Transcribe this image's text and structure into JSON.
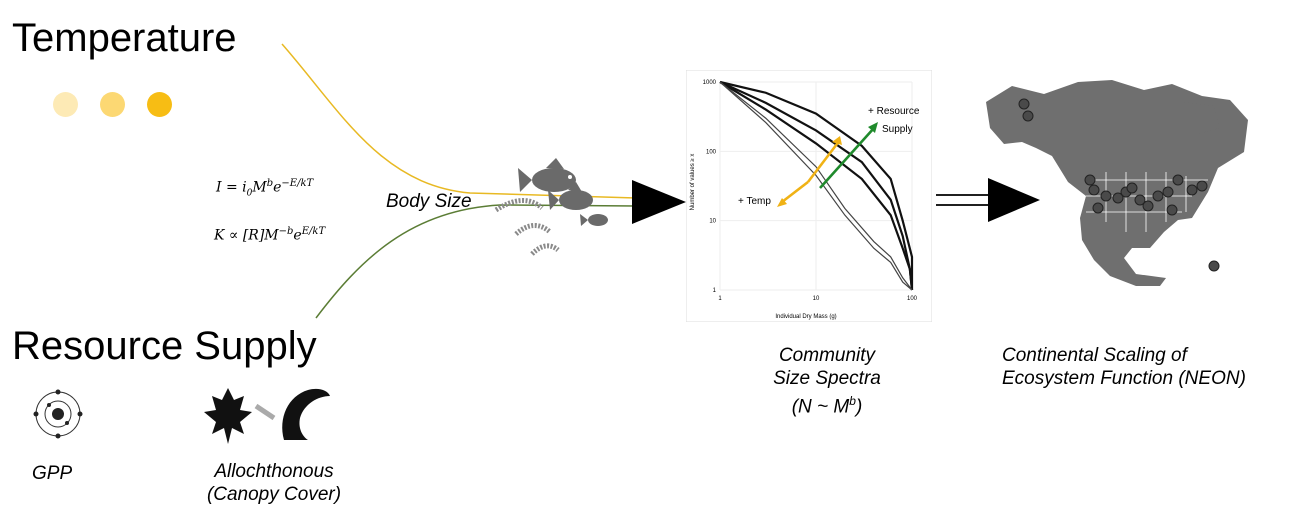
{
  "headings": {
    "temperature": "Temperature",
    "resource_supply": "Resource Supply"
  },
  "equations": {
    "metabolic": "I = i",
    "metabolic_sub": "0",
    "metabolic_rest": "M",
    "metabolic_exp_b": "b",
    "metabolic_e": "e",
    "metabolic_exp": "−E/kT",
    "carrying": "K ∝ [R]M",
    "carrying_exp": "−b",
    "carrying_e": "e",
    "carrying_exp2": "E/kT"
  },
  "labels": {
    "body_size": "Body Size",
    "gpp": "GPP",
    "allochthonous_line1": "Allochthonous",
    "allochthonous_line2": "(Canopy Cover)",
    "spectra_line1": "Community",
    "spectra_line2": "Size Spectra",
    "spectra_line3": "(N ~ M",
    "spectra_sup": "b",
    "spectra_line3_end": ")",
    "continental_line1": "Continental Scaling of",
    "continental_line2": "Ecosystem Function (NEON)"
  },
  "colors": {
    "temperature_dots": [
      "#fdeab5",
      "#fcd873",
      "#f7bd14"
    ],
    "temp_line": "#e8b923",
    "resource_line": "#5b7d35",
    "temp_arrow": "#f0b215",
    "resource_arrow": "#1f8a2c",
    "map_land": "#6f6f6f",
    "map_points": "#4a4a4a"
  },
  "icons": [
    "sun-dots",
    "fish-icon",
    "invertebrate-icon",
    "atom-icon",
    "leaf-icon",
    "caterpillar-icon",
    "arrow-head-icon",
    "north-america-map"
  ],
  "chart_data": {
    "type": "line",
    "xlabel": "Individual Dry Mass (g)",
    "ylabel": "Number of values ≥ x",
    "x_scale": "log",
    "y_scale": "log",
    "xlim": [
      1,
      100
    ],
    "ylim": [
      1,
      1000
    ],
    "x_ticks": [
      "1",
      "10",
      "100"
    ],
    "y_ticks": [
      "1000",
      "100",
      "10",
      "1"
    ],
    "annotations": [
      "+ Resource",
      "Supply",
      "+ Temp"
    ],
    "grid": true,
    "series": [
      {
        "x": [
          1,
          3,
          10,
          30,
          60,
          80,
          100,
          100
        ],
        "y": [
          1000,
          700,
          350,
          120,
          40,
          10,
          3,
          1
        ]
      },
      {
        "x": [
          1,
          3,
          10,
          30,
          60,
          80,
          95,
          100
        ],
        "y": [
          1000,
          500,
          200,
          70,
          20,
          6,
          2,
          1
        ]
      },
      {
        "x": [
          1,
          3,
          10,
          30,
          60,
          80,
          95,
          100
        ],
        "y": [
          1000,
          400,
          130,
          40,
          12,
          4,
          2,
          1
        ]
      },
      {
        "x": [
          1,
          3,
          10,
          20,
          40,
          60,
          80,
          100
        ],
        "y": [
          1000,
          300,
          60,
          15,
          5,
          3,
          1.5,
          1
        ]
      },
      {
        "x": [
          1,
          3,
          10,
          20,
          40,
          60,
          80,
          100
        ],
        "y": [
          1000,
          260,
          45,
          12,
          4,
          2.5,
          1.3,
          1
        ]
      }
    ]
  }
}
